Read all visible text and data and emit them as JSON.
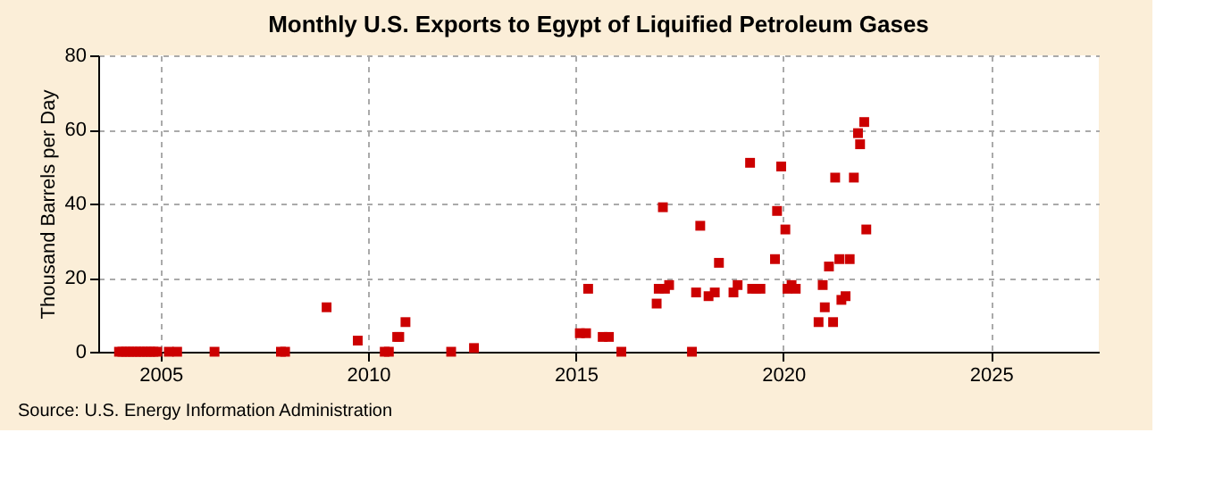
{
  "chart_data": {
    "type": "scatter",
    "title": "Monthly U.S. Exports to Egypt of Liquified Petroleum Gases",
    "ylabel": "Thousand Barrels per Day",
    "x": [
      2004.0,
      2004.08,
      2004.17,
      2004.25,
      2004.33,
      2004.42,
      2004.5,
      2004.58,
      2004.67,
      2004.75,
      2004.83,
      2004.92,
      2005.2,
      2005.4,
      2006.3,
      2007.9,
      2008.0,
      2009.0,
      2009.75,
      2010.4,
      2010.5,
      2010.7,
      2010.75,
      2010.9,
      2012.0,
      2012.55,
      2015.1,
      2015.25,
      2015.3,
      2015.65,
      2015.8,
      2016.1,
      2016.95,
      2017.0,
      2017.1,
      2017.15,
      2017.25,
      2017.8,
      2017.9,
      2018.0,
      2018.2,
      2018.35,
      2018.45,
      2018.8,
      2018.9,
      2019.2,
      2019.25,
      2019.35,
      2019.45,
      2019.8,
      2019.85,
      2019.95,
      2020.05,
      2020.1,
      2020.2,
      2020.3,
      2020.85,
      2020.95,
      2021.0,
      2021.1,
      2021.2,
      2021.25,
      2021.35,
      2021.4,
      2021.5,
      2021.6,
      2021.7,
      2021.8,
      2021.85,
      2021.95,
      2022.0
    ],
    "values": [
      0,
      0,
      0,
      0,
      0,
      0,
      0,
      0,
      0,
      0,
      0,
      0,
      0,
      0,
      0,
      0,
      0,
      12,
      3,
      0,
      0,
      4,
      4,
      8,
      0,
      1,
      5,
      5,
      17,
      4,
      4,
      0,
      13,
      17,
      39,
      17,
      18,
      0,
      16,
      34,
      15,
      16,
      24,
      16,
      18,
      51,
      17,
      17,
      17,
      25,
      38,
      50,
      33,
      17,
      18,
      17,
      8,
      18,
      12,
      23,
      8,
      47,
      25,
      14,
      15,
      25,
      47,
      59,
      56,
      62,
      33
    ],
    "color": "#cc0000",
    "marker": "square",
    "xlim": [
      2003.5,
      2027.6
    ],
    "xticks": [
      2005,
      2010,
      2015,
      2020,
      2025
    ],
    "ylim": [
      0,
      80
    ],
    "yticks": [
      0,
      20,
      40,
      60,
      80
    ],
    "grid": true,
    "annotations": [
      "Source: U.S. Energy Information Administration"
    ]
  }
}
